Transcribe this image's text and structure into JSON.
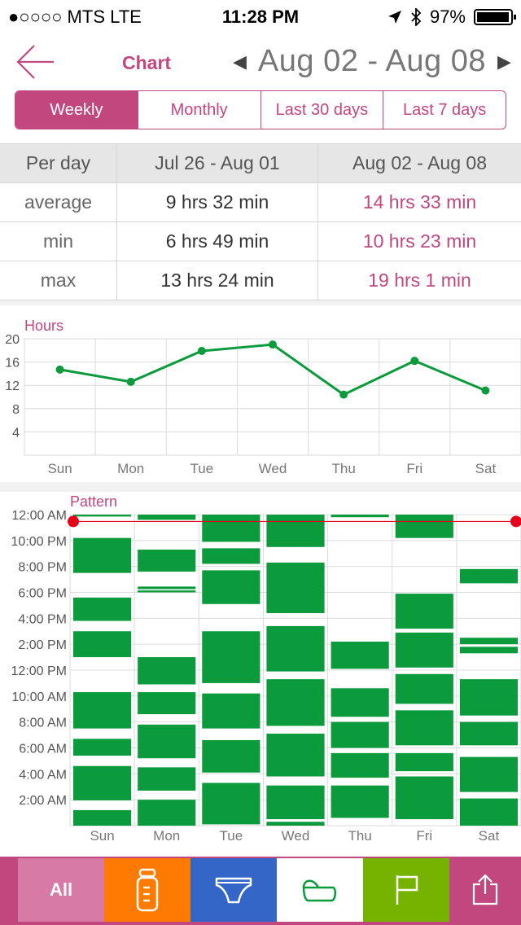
{
  "status_bar": {
    "carrier": "●○○○○ MTS   LTE",
    "time": "11:28 PM",
    "battery": "97%",
    "battery_level": 0.97
  },
  "nav": {
    "back_icon": "back-arrow-icon",
    "title": "Chart",
    "prev_arrow": "◀",
    "next_arrow": "▶",
    "date_range": "Aug 02 - Aug 08"
  },
  "segments": {
    "active": 0,
    "items": [
      "Weekly",
      "Monthly",
      "Last 30 days",
      "Last 7 days"
    ]
  },
  "stats": {
    "headers": [
      "Per day",
      "Jul 26 - Aug 01",
      "Aug 02 - Aug 08"
    ],
    "rows": [
      {
        "label": "average",
        "prev": "9 hrs 32 min",
        "curr": "14 hrs 33 min"
      },
      {
        "label": "min",
        "prev": "6 hrs 49 min",
        "curr": "10 hrs 23 min"
      },
      {
        "label": "max",
        "prev": "13 hrs 24 min",
        "curr": "19 hrs 1 min"
      }
    ]
  },
  "colors": {
    "accent": "#c2477f",
    "series": "#0b9a3c",
    "marker": "#e8001a"
  },
  "chart_data": [
    {
      "type": "line",
      "title": "Hours",
      "categories": [
        "Sun",
        "Mon",
        "Tue",
        "Wed",
        "Thu",
        "Fri",
        "Sat"
      ],
      "values": [
        14.7,
        12.6,
        17.9,
        19.0,
        10.4,
        16.2,
        11.1
      ],
      "yticks": [
        20,
        16,
        12,
        8,
        4
      ],
      "ylim": [
        0,
        20
      ],
      "grid": true
    },
    {
      "type": "bar",
      "title": "Pattern",
      "categories": [
        "Sun",
        "Mon",
        "Tue",
        "Wed",
        "Thu",
        "Fri",
        "Sat"
      ],
      "yticks": [
        "12:00 AM",
        "10:00 PM",
        "8:00 PM",
        "6:00 PM",
        "4:00 PM",
        "2:00 PM",
        "12:00 PM",
        "10:00 AM",
        "8:00 AM",
        "6:00 AM",
        "4:00 AM",
        "2:00 AM"
      ],
      "ylim_hours": [
        0,
        24
      ],
      "current_time_hours": 23.47,
      "grid": true,
      "sleep_intervals_hours": [
        [
          [
            0.0,
            1.2
          ],
          [
            1.95,
            4.6
          ],
          [
            5.4,
            6.7
          ],
          [
            7.5,
            10.3
          ],
          [
            13.0,
            15.0
          ],
          [
            15.8,
            17.6
          ],
          [
            19.5,
            22.2
          ],
          [
            23.85,
            24.0
          ]
        ],
        [
          [
            0.0,
            2.0
          ],
          [
            2.7,
            4.5
          ],
          [
            5.2,
            7.8
          ],
          [
            8.6,
            10.3
          ],
          [
            10.9,
            13.0
          ],
          [
            18.0,
            18.15
          ],
          [
            18.25,
            18.45
          ],
          [
            19.6,
            21.3
          ],
          [
            23.6,
            24.0
          ]
        ],
        [
          [
            0.1,
            3.3
          ],
          [
            4.1,
            6.6
          ],
          [
            7.5,
            10.2
          ],
          [
            11.0,
            15.0
          ],
          [
            17.1,
            19.7
          ],
          [
            20.2,
            21.4
          ],
          [
            21.9,
            24.0
          ]
        ],
        [
          [
            0.0,
            0.3
          ],
          [
            0.5,
            3.1
          ],
          [
            3.8,
            7.1
          ],
          [
            7.7,
            11.3
          ],
          [
            11.9,
            15.4
          ],
          [
            16.4,
            20.3
          ],
          [
            21.5,
            24.0
          ]
        ],
        [
          [
            0.6,
            3.1
          ],
          [
            3.7,
            5.6
          ],
          [
            6.0,
            8.0
          ],
          [
            8.4,
            10.6
          ],
          [
            12.1,
            14.2
          ],
          [
            23.8,
            24.0
          ]
        ],
        [
          [
            0.5,
            3.8
          ],
          [
            4.2,
            5.6
          ],
          [
            6.2,
            8.9
          ],
          [
            9.4,
            11.7
          ],
          [
            12.2,
            14.9
          ],
          [
            15.2,
            17.9
          ],
          [
            22.2,
            24.0
          ]
        ],
        [
          [
            0.0,
            2.1
          ],
          [
            2.6,
            5.3
          ],
          [
            6.2,
            8.0
          ],
          [
            8.5,
            11.3
          ],
          [
            13.3,
            13.8
          ],
          [
            14.0,
            14.5
          ],
          [
            18.7,
            19.8
          ]
        ]
      ]
    }
  ],
  "tabbar": {
    "items": [
      {
        "label": "All",
        "icon": "all"
      },
      {
        "label": "",
        "icon": "bottle-icon"
      },
      {
        "label": "",
        "icon": "diaper-icon"
      },
      {
        "label": "",
        "icon": "crib-icon"
      },
      {
        "label": "",
        "icon": "flag-icon"
      },
      {
        "label": "",
        "icon": "share-icon"
      }
    ]
  }
}
